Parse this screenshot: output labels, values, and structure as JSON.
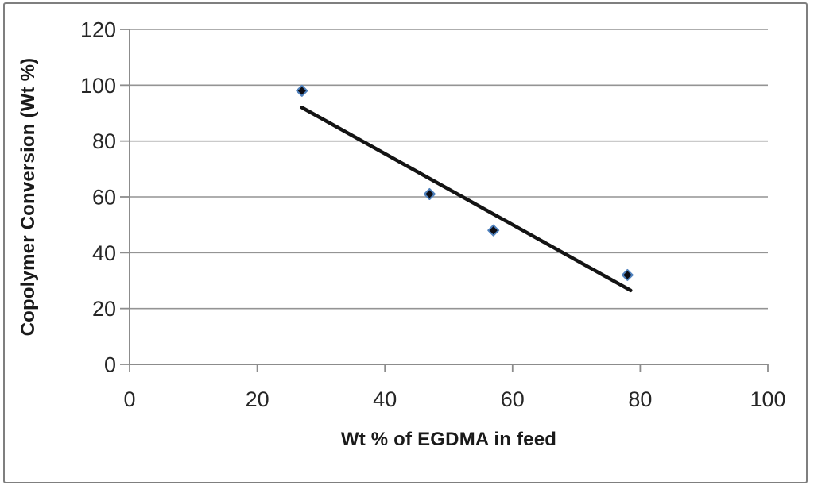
{
  "window": {
    "background": "#ffffff",
    "border_color": "#7f7f7f"
  },
  "chart_data": {
    "type": "scatter",
    "title": "",
    "xlabel": "Wt % of EGDMA in feed",
    "ylabel": "Copolymer Conversion (Wt %)",
    "x": [
      27,
      47,
      57,
      78
    ],
    "y": [
      98,
      61,
      48,
      32
    ],
    "xlim": [
      0,
      100
    ],
    "ylim": [
      0,
      120
    ],
    "x_ticks": [
      0,
      20,
      40,
      60,
      80,
      100
    ],
    "y_ticks": [
      0,
      20,
      40,
      60,
      80,
      100,
      120
    ],
    "trendline": {
      "x": [
        27,
        78.5
      ],
      "y": [
        92,
        26.5
      ]
    },
    "grid": "horizontal-only",
    "legend_position": "none",
    "marker": "diamond",
    "colors": {
      "marker_fill": "#0d0d14",
      "marker_stroke": "#4f81bd",
      "trendline": "#141414",
      "gridline": "#949494",
      "axis_line": "#8c8c8c",
      "tick_label": "#262626",
      "axis_title": "#1a1a1a"
    }
  }
}
